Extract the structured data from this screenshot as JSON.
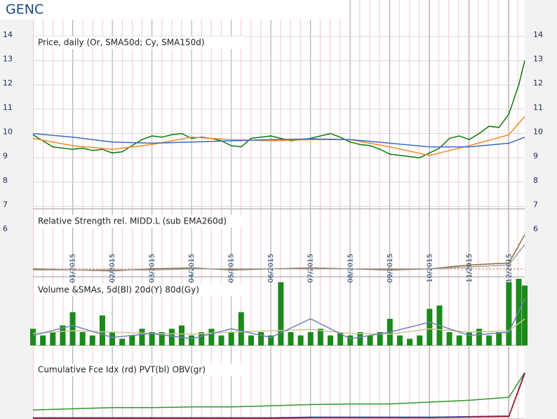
{
  "header": {
    "title": "GENC"
  },
  "chart_data": [
    {
      "type": "line",
      "title": "Price, daily (Or, SMA50d; Cy, SMA150d)",
      "xlim": [
        0,
        12.4
      ],
      "xticks": [
        {
          "value": 1,
          "label": "01/2015"
        },
        {
          "value": 2,
          "label": "02/2015"
        },
        {
          "value": 3,
          "label": "03/2015"
        },
        {
          "value": 4,
          "label": "04/2015"
        },
        {
          "value": 5,
          "label": "05/2015"
        },
        {
          "value": 6,
          "label": "06/2015"
        },
        {
          "value": 7,
          "label": "07/2015"
        },
        {
          "value": 8,
          "label": "08/2015"
        },
        {
          "value": 9,
          "label": "09/2015"
        },
        {
          "value": 10,
          "label": "10/2015"
        },
        {
          "value": 11,
          "label": "11/2015"
        },
        {
          "value": 12,
          "label": "12/2015"
        }
      ],
      "ylim": [
        6.9,
        14.2
      ],
      "yticks": [
        6,
        7,
        8,
        9,
        10,
        11,
        12,
        13,
        14
      ],
      "grid": true,
      "series": [
        {
          "color": "#0a7a0a",
          "x": [
            0,
            0.25,
            0.5,
            0.75,
            1,
            1.25,
            1.5,
            1.75,
            2,
            2.25,
            2.5,
            2.75,
            3,
            3.25,
            3.5,
            3.75,
            4,
            4.25,
            4.5,
            4.75,
            5,
            5.25,
            5.5,
            5.75,
            6,
            6.25,
            6.5,
            6.75,
            7,
            7.25,
            7.5,
            7.75,
            8,
            8.25,
            8.5,
            8.75,
            9,
            9.25,
            9.5,
            9.75,
            10,
            10.25,
            10.5,
            10.75,
            11,
            11.25,
            11.5,
            11.75,
            12,
            12.25,
            12.4
          ],
          "values": [
            9.95,
            9.7,
            9.45,
            9.4,
            9.35,
            9.4,
            9.3,
            9.35,
            9.2,
            9.25,
            9.5,
            9.75,
            9.9,
            9.85,
            9.95,
            10.0,
            9.8,
            9.85,
            9.8,
            9.7,
            9.5,
            9.45,
            9.8,
            9.85,
            9.9,
            9.8,
            9.7,
            9.75,
            9.8,
            9.9,
            10.0,
            9.85,
            9.65,
            9.55,
            9.5,
            9.35,
            9.15,
            9.1,
            9.05,
            9.0,
            9.2,
            9.4,
            9.8,
            9.9,
            9.75,
            10.0,
            10.3,
            10.25,
            10.8,
            12.0,
            13.0
          ]
        },
        {
          "color": "#f08a28",
          "x": [
            0,
            1,
            2,
            3,
            4,
            5,
            6,
            7,
            8,
            9,
            10,
            11,
            12,
            12.4
          ],
          "values": [
            9.8,
            9.5,
            9.35,
            9.55,
            9.85,
            9.75,
            9.7,
            9.75,
            9.75,
            9.45,
            9.1,
            9.5,
            9.95,
            10.7
          ]
        },
        {
          "color": "#3a6ac8",
          "x": [
            0,
            1,
            2,
            3,
            4,
            5,
            6,
            7,
            8,
            9,
            10,
            11,
            12,
            12.4
          ],
          "values": [
            10.0,
            9.85,
            9.65,
            9.6,
            9.65,
            9.7,
            9.75,
            9.78,
            9.75,
            9.6,
            9.45,
            9.45,
            9.6,
            9.85
          ]
        }
      ]
    },
    {
      "type": "line",
      "title": "Relative Strength rel. MIDD.L (sub EMA260d)",
      "xlim": [
        0,
        12.4
      ],
      "ylim": [
        0.92,
        1.6
      ],
      "reference": 1,
      "series": [
        {
          "color": "#8a6a40",
          "x": [
            0,
            1,
            2,
            3,
            4,
            5,
            6,
            7,
            8,
            9,
            10,
            11,
            12,
            12.4
          ],
          "values": [
            1.0,
            0.99,
            0.98,
            1.0,
            1.01,
            0.99,
            1.0,
            1.01,
            1.0,
            0.99,
            1.0,
            1.04,
            1.06,
            1.35
          ]
        },
        {
          "color": "#a0a0a0",
          "x": [
            0,
            1,
            2,
            3,
            4,
            5,
            6,
            7,
            8,
            9,
            10,
            11,
            12,
            12.4
          ],
          "values": [
            0.99,
            0.99,
            0.99,
            0.99,
            1.0,
            1.0,
            1.0,
            1.0,
            1.0,
            1.0,
            1.0,
            1.02,
            1.04,
            1.25
          ]
        }
      ]
    },
    {
      "type": "bar",
      "title": "Volume &SMAs, 5d(Bl) 20d(Y) 80d(Gy)",
      "xlim": [
        0,
        12.4
      ],
      "ylim": [
        0,
        100
      ],
      "series": [
        {
          "type": "bar",
          "color": "#1a8a1a",
          "x": [
            0,
            0.25,
            0.5,
            0.75,
            1,
            1.25,
            1.5,
            1.75,
            2,
            2.25,
            2.5,
            2.75,
            3,
            3.25,
            3.5,
            3.75,
            4,
            4.25,
            4.5,
            4.75,
            5,
            5.25,
            5.5,
            5.75,
            6,
            6.25,
            6.5,
            6.75,
            7,
            7.25,
            7.5,
            7.75,
            8,
            8.25,
            8.5,
            8.75,
            9,
            9.25,
            9.5,
            9.75,
            10,
            10.25,
            10.5,
            10.75,
            11,
            11.25,
            11.5,
            11.75,
            12,
            12.25,
            12.4
          ],
          "values": [
            25,
            15,
            20,
            30,
            50,
            20,
            15,
            45,
            20,
            10,
            15,
            25,
            20,
            20,
            25,
            30,
            15,
            20,
            25,
            15,
            20,
            50,
            15,
            20,
            15,
            95,
            20,
            15,
            20,
            25,
            15,
            20,
            15,
            20,
            15,
            20,
            40,
            15,
            10,
            15,
            55,
            60,
            20,
            15,
            20,
            25,
            15,
            20,
            95,
            100,
            90
          ]
        },
        {
          "color": "#c8c890",
          "x": [
            0,
            1,
            2,
            3,
            4,
            5,
            6,
            7,
            8,
            9,
            10,
            11,
            12,
            12.4
          ],
          "values": [
            18,
            22,
            20,
            18,
            17,
            20,
            22,
            24,
            18,
            17,
            25,
            20,
            22,
            40
          ]
        },
        {
          "color": "#7080c0",
          "x": [
            0,
            1,
            2,
            3,
            4,
            5,
            6,
            7,
            8,
            9,
            10,
            11,
            12,
            12.4
          ],
          "values": [
            15,
            30,
            12,
            18,
            10,
            25,
            12,
            40,
            10,
            20,
            35,
            15,
            20,
            70
          ]
        }
      ]
    },
    {
      "type": "line",
      "title": "Cumulative Fce Idx (rd) PVT(bl) OBV(gr)",
      "xlim": [
        0,
        12.4
      ],
      "ylim": [
        0,
        100
      ],
      "series": [
        {
          "color": "#2a9a2a",
          "x": [
            0,
            1,
            2,
            3,
            4,
            5,
            6,
            7,
            8,
            9,
            10,
            11,
            12,
            12.4
          ],
          "values": [
            15,
            17,
            19,
            19,
            20,
            20,
            22,
            24,
            25,
            25,
            28,
            31,
            36,
            77
          ]
        },
        {
          "color": "#2030c0",
          "x": [
            0,
            1,
            2,
            3,
            4,
            5,
            6,
            7,
            8,
            9,
            10,
            11,
            12,
            12.4
          ],
          "values": [
            2,
            2,
            2,
            2,
            2,
            2,
            2,
            3,
            3,
            3,
            3,
            4,
            5,
            77
          ]
        },
        {
          "color": "#c02020",
          "x": [
            0,
            1,
            2,
            3,
            4,
            5,
            6,
            7,
            8,
            9,
            10,
            11,
            12,
            12.4
          ],
          "values": [
            1,
            1,
            1,
            1,
            1,
            1,
            1,
            2,
            2,
            2,
            2,
            3,
            4,
            75
          ]
        }
      ]
    }
  ]
}
